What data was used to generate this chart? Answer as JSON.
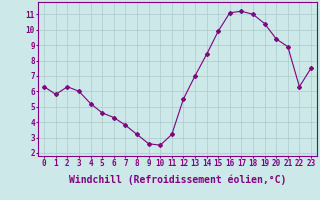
{
  "x": [
    0,
    1,
    2,
    3,
    4,
    5,
    6,
    7,
    8,
    9,
    10,
    11,
    12,
    13,
    14,
    15,
    16,
    17,
    18,
    19,
    20,
    21,
    22,
    23
  ],
  "y": [
    6.3,
    5.8,
    6.3,
    6.0,
    5.2,
    4.6,
    4.3,
    3.8,
    3.2,
    2.6,
    2.5,
    3.2,
    5.5,
    7.0,
    8.4,
    9.9,
    11.1,
    11.2,
    11.0,
    10.4,
    9.4,
    8.9,
    6.3,
    7.5
  ],
  "xlim": [
    -0.5,
    23.5
  ],
  "ylim": [
    1.8,
    11.8
  ],
  "xticks": [
    0,
    1,
    2,
    3,
    4,
    5,
    6,
    7,
    8,
    9,
    10,
    11,
    12,
    13,
    14,
    15,
    16,
    17,
    18,
    19,
    20,
    21,
    22,
    23
  ],
  "yticks": [
    2,
    3,
    4,
    5,
    6,
    7,
    8,
    9,
    10,
    11
  ],
  "xlabel": "Windchill (Refroidissement éolien,°C)",
  "line_color": "#800080",
  "marker": "D",
  "marker_size": 2.0,
  "bg_color": "#cce8e8",
  "grid_color": "#aacccc",
  "tick_label_fontsize": 5.5,
  "xlabel_fontsize": 7.0,
  "line_width": 0.8
}
